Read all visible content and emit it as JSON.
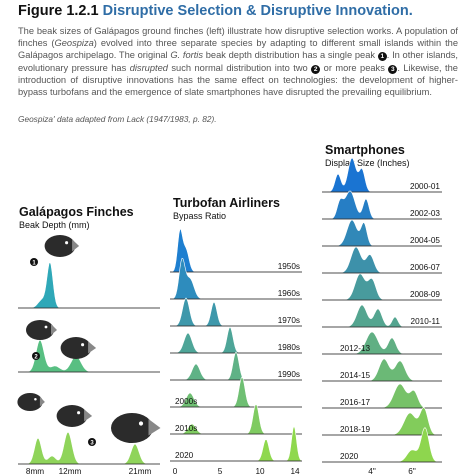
{
  "header": {
    "number": "Figure 1.2.1",
    "title": "Disruptive Selection & Disruptive Innovation."
  },
  "paragraph": [
    {
      "text": "The beak sizes of Galápagos ground finches (left) illustrate how disruptive selection works. A population of finches ("
    },
    {
      "text": "Geospiza",
      "italic": true
    },
    {
      "text": ") evolved into three separate species by adapting to different small islands within the Galápagos archipelago. The original "
    },
    {
      "text": "G. fortis",
      "italic": true
    },
    {
      "text": " beak depth distribution has a single peak "
    },
    {
      "marker": "1"
    },
    {
      "text": ". In other islands, evolutionary pressure has "
    },
    {
      "text": "disrupted",
      "italic": true
    },
    {
      "text": " such normal distribution into two "
    },
    {
      "marker": "2"
    },
    {
      "text": " or more peaks "
    },
    {
      "marker": "3"
    },
    {
      "text": ". Likewise, the introduction of disruptive innovations has the same effect on technologies: the development of higher-bypass turbofans and the emergence of slate smartphones have disrupted the prevailing equilibrium."
    }
  ],
  "source": "Geospiza' data adapted from Lack (1947/1983, p. 82).",
  "panels": {
    "finches": {
      "title": "Galápagos Finches",
      "subtitle": "Beak Depth (mm)",
      "markers": [
        "1",
        "2",
        "3"
      ],
      "ticks": [
        "8mm",
        "12mm",
        "21mm"
      ]
    },
    "turbofan": {
      "title": "Turbofan Airliners",
      "subtitle": "Bypass Ratio",
      "rows": [
        "1950s",
        "1960s",
        "1970s",
        "1980s",
        "1990s",
        "2000s",
        "2010s",
        "2020"
      ],
      "ticks": [
        "0",
        "5",
        "10",
        "14"
      ]
    },
    "smartphones": {
      "title": "Smartphones",
      "subtitle": "Display Size (Inches)",
      "rows": [
        "2000-01",
        "2002-03",
        "2004-05",
        "2006-07",
        "2008-09",
        "2010-11",
        "2012-13",
        "2014-15",
        "2016-17",
        "2018-19",
        "2020"
      ],
      "ticks": [
        "4\"",
        "6\""
      ]
    }
  }
}
